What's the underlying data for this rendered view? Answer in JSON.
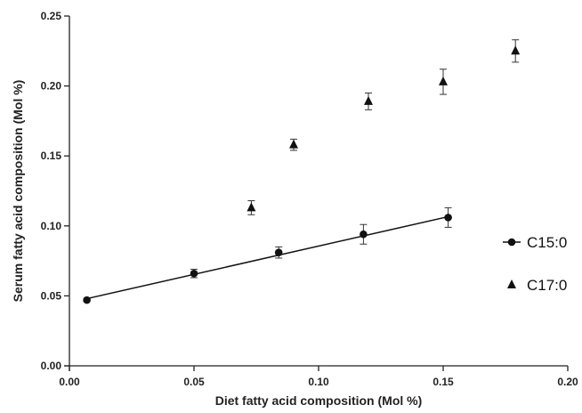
{
  "chart_data": {
    "type": "scatter",
    "title": "",
    "xlabel": "Diet fatty acid composition (Mol %)",
    "ylabel": "Serum fatty acid composition (Mol %)",
    "xlim": [
      0.0,
      0.2
    ],
    "ylim": [
      0.0,
      0.25
    ],
    "x_ticks": [
      "0.00",
      "0.05",
      "0.10",
      "0.15",
      "0.20"
    ],
    "y_ticks": [
      "0.00",
      "0.05",
      "0.10",
      "0.15",
      "0.20",
      "0.25"
    ],
    "grid": false,
    "legend_position": "right",
    "series": [
      {
        "name": "C15:0",
        "marker": "circle",
        "color": "#111111",
        "points": [
          {
            "x": 0.007,
            "y": 0.047,
            "err": 0.0
          },
          {
            "x": 0.05,
            "y": 0.066,
            "err": 0.003
          },
          {
            "x": 0.084,
            "y": 0.081,
            "err": 0.004
          },
          {
            "x": 0.118,
            "y": 0.094,
            "err": 0.007
          },
          {
            "x": 0.152,
            "y": 0.106,
            "err": 0.007
          }
        ],
        "fit_line": {
          "x0": 0.007,
          "y0": 0.048,
          "x1": 0.153,
          "y1": 0.107
        }
      },
      {
        "name": "C17:0",
        "marker": "triangle",
        "color": "#111111",
        "points": [
          {
            "x": 0.073,
            "y": 0.113,
            "err": 0.005
          },
          {
            "x": 0.09,
            "y": 0.158,
            "err": 0.004
          },
          {
            "x": 0.12,
            "y": 0.189,
            "err": 0.006
          },
          {
            "x": 0.15,
            "y": 0.203,
            "err": 0.009
          },
          {
            "x": 0.179,
            "y": 0.225,
            "err": 0.008
          }
        ]
      }
    ]
  }
}
